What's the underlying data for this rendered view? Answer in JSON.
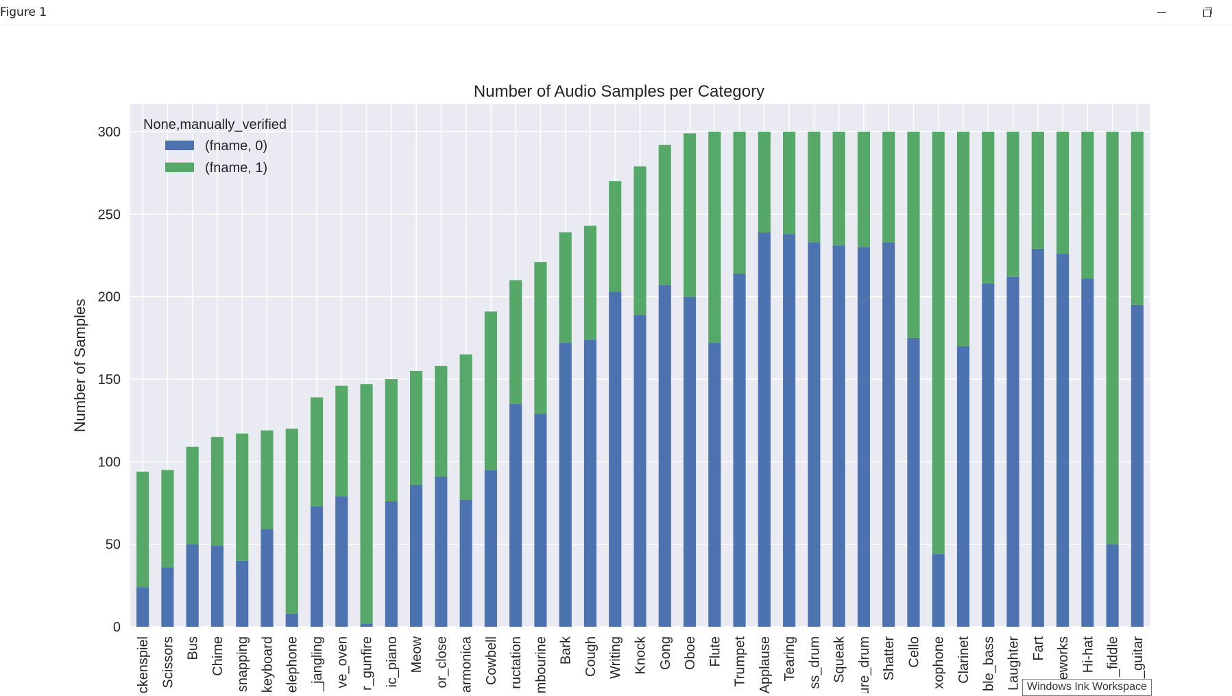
{
  "window": {
    "title": "Figure 1"
  },
  "tooltip": {
    "text": "Windows Ink Workspace"
  },
  "colors": {
    "series0": "#4c72b0",
    "series1": "#55a868",
    "plot_bg": "#eaeaf2",
    "grid": "#ffffff",
    "text": "#262626"
  },
  "chart_data": {
    "type": "bar",
    "stacked": true,
    "title": "Number of Audio Samples per Category",
    "xlabel": "",
    "ylabel": "Number of Samples",
    "ylim": [
      0,
      315
    ],
    "yticks": [
      0,
      50,
      100,
      150,
      200,
      250,
      300
    ],
    "grid": true,
    "legend": {
      "title": "None,manually_verified",
      "position": "top-left"
    },
    "categories": [
      "ckenspiel",
      "Scissors",
      "Bus",
      "Chime",
      "snapping",
      "keyboard",
      "elephone",
      "_jangling",
      "ve_oven",
      "r_gunfire",
      "ic_piano",
      "Meow",
      "or_close",
      "armonica",
      "Cowbell",
      "ructation",
      "mbourine",
      "Bark",
      "Cough",
      "Writing",
      "Knock",
      "Gong",
      "Oboe",
      "Flute",
      "Trumpet",
      "Applause",
      "Tearing",
      "ss_drum",
      "Squeak",
      "ure_drum",
      "Shatter",
      "Cello",
      "xophone",
      "Clarinet",
      "ble_bass",
      "Laughter",
      "Fart",
      "eworks",
      "Hi-hat",
      "_fiddle",
      "_guitar"
    ],
    "series": [
      {
        "name": "(fname, 0)",
        "values": [
          24,
          36,
          50,
          49,
          40,
          59,
          8,
          73,
          79,
          2,
          76,
          86,
          91,
          77,
          95,
          135,
          129,
          172,
          174,
          203,
          189,
          207,
          200,
          172,
          214,
          239,
          238,
          233,
          231,
          230,
          233,
          175,
          44,
          170,
          208,
          212,
          229,
          226,
          211,
          50,
          195
        ]
      },
      {
        "name": "(fname, 1)",
        "values": [
          70,
          59,
          59,
          66,
          77,
          60,
          112,
          66,
          67,
          145,
          74,
          69,
          67,
          88,
          96,
          75,
          92,
          67,
          69,
          67,
          90,
          85,
          99,
          128,
          86,
          61,
          62,
          67,
          69,
          70,
          67,
          125,
          256,
          130,
          92,
          88,
          71,
          74,
          89,
          250,
          105
        ]
      }
    ]
  }
}
